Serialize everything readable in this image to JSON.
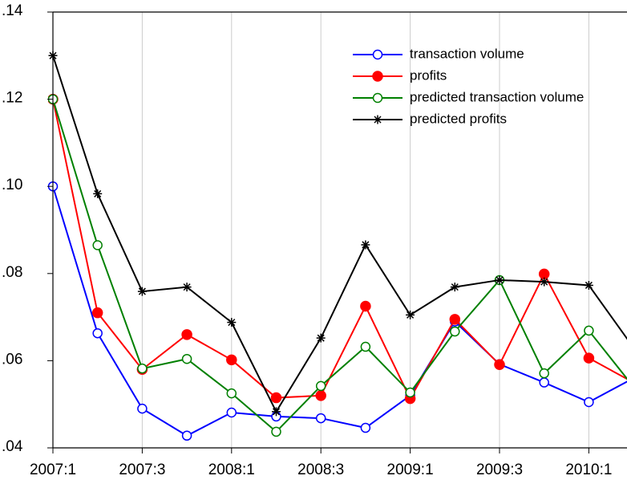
{
  "chart_data": {
    "type": "line",
    "categories": [
      "2007:1",
      null,
      "2007:3",
      null,
      "2008:1",
      null,
      "2008:3",
      null,
      "2009:1",
      null,
      "2009:3",
      null,
      "2010:1",
      null
    ],
    "series": [
      {
        "name": "transaction volume",
        "color": "#0000ff",
        "marker": "open-circle",
        "values": [
          0.1,
          0.0663,
          0.049,
          0.0428,
          0.0481,
          0.0472,
          0.0468,
          0.0446,
          0.052,
          0.069,
          0.0592,
          0.055,
          0.0505,
          0.056
        ]
      },
      {
        "name": "profits",
        "color": "#ff0000",
        "marker": "filled-circle",
        "values": [
          0.12,
          0.071,
          0.058,
          0.066,
          0.0602,
          0.0515,
          0.052,
          0.0725,
          0.0513,
          0.0695,
          0.0591,
          0.0799,
          0.0606,
          0.055
        ]
      },
      {
        "name": "predicted transaction volume",
        "color": "#008000",
        "marker": "open-circle",
        "values": [
          0.12,
          0.0865,
          0.0582,
          0.0604,
          0.0525,
          0.0437,
          0.0542,
          0.0632,
          0.0527,
          0.0667,
          0.0785,
          0.0571,
          0.0669,
          0.054
        ]
      },
      {
        "name": "predicted profits",
        "color": "#000000",
        "marker": "star",
        "values": [
          0.13,
          0.0983,
          0.0759,
          0.0769,
          0.0688,
          0.0483,
          0.0652,
          0.0866,
          0.0705,
          0.0769,
          0.0785,
          0.0781,
          0.0773,
          0.063
        ]
      }
    ],
    "ylim": [
      0.04,
      0.14
    ],
    "yticks": [
      {
        "value": 0.04,
        "label": ".04"
      },
      {
        "value": 0.06,
        "label": ".06"
      },
      {
        "value": 0.08,
        "label": ".08"
      },
      {
        "value": 0.1,
        "label": ".10"
      },
      {
        "value": 0.12,
        "label": ".12"
      },
      {
        "value": 0.14,
        "label": ".14"
      }
    ],
    "grid": true,
    "legend": "top-right"
  }
}
